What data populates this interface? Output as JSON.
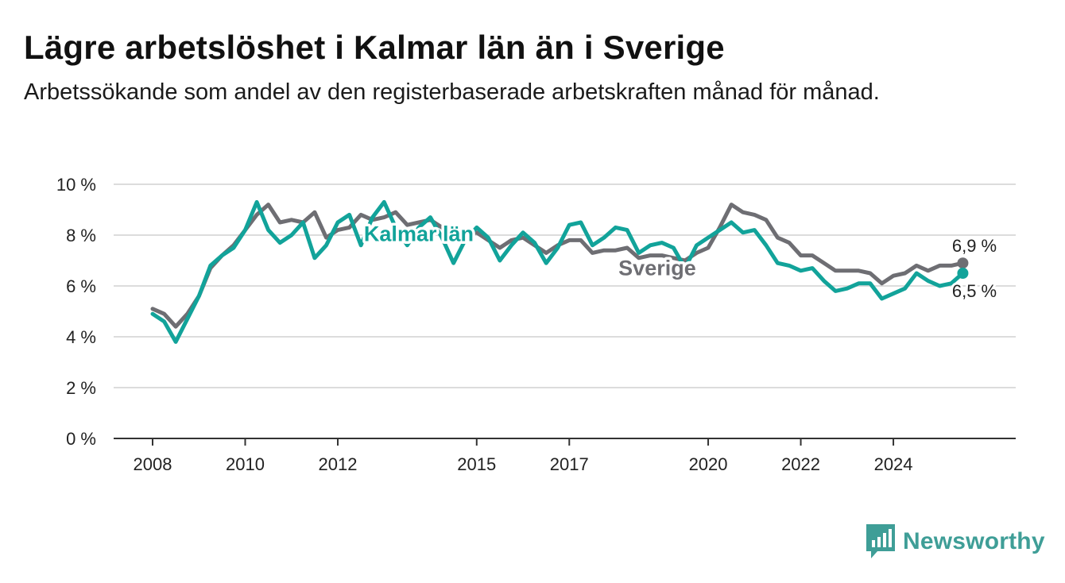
{
  "title": "Lägre arbetslöshet i Kalmar län än i Sverige",
  "subtitle": "Arbetssökande som andel av den registerbaserade arbetskraften månad för månad.",
  "brand": {
    "name": "Newsworthy",
    "icon": "newsworthy-logo-icon",
    "color": "#3f9e97"
  },
  "chart_data": {
    "type": "line",
    "title": "Lägre arbetslöshet i Kalmar län än i Sverige",
    "subtitle": "Arbetssökande som andel av den registerbaserade arbetskraften månad för månad.",
    "xlabel": "",
    "ylabel": "",
    "ylim": [
      0,
      10
    ],
    "yticks": [
      0,
      2,
      4,
      6,
      8,
      10
    ],
    "ytick_labels": [
      "0 %",
      "2 %",
      "4 %",
      "6 %",
      "8 %",
      "10 %"
    ],
    "xlim": [
      2008.0,
      2025.75
    ],
    "xticks": [
      2008,
      2010,
      2012,
      2015,
      2017,
      2020,
      2022,
      2024
    ],
    "xtick_labels": [
      "2008",
      "2010",
      "2012",
      "2015",
      "2017",
      "2020",
      "2022",
      "2024"
    ],
    "grid": true,
    "legend": "inline labels",
    "series": [
      {
        "name": "Sverige",
        "color": "#6e6e73",
        "end_label": "6,9 %",
        "x": [
          2008.0,
          2008.25,
          2008.5,
          2008.75,
          2009.0,
          2009.25,
          2009.5,
          2009.75,
          2010.0,
          2010.25,
          2010.5,
          2010.75,
          2011.0,
          2011.25,
          2011.5,
          2011.75,
          2012.0,
          2012.25,
          2012.5,
          2012.75,
          2013.0,
          2013.25,
          2013.5,
          2013.75,
          2014.0,
          2014.25,
          2014.5,
          2014.75,
          2015.0,
          2015.25,
          2015.5,
          2015.75,
          2016.0,
          2016.25,
          2016.5,
          2016.75,
          2017.0,
          2017.25,
          2017.5,
          2017.75,
          2018.0,
          2018.25,
          2018.5,
          2018.75,
          2019.0,
          2019.25,
          2019.5,
          2019.75,
          2020.0,
          2020.25,
          2020.5,
          2020.75,
          2021.0,
          2021.25,
          2021.5,
          2021.75,
          2022.0,
          2022.25,
          2022.5,
          2022.75,
          2023.0,
          2023.25,
          2023.5,
          2023.75,
          2024.0,
          2024.25,
          2024.5,
          2024.75,
          2025.0,
          2025.25,
          2025.5
        ],
        "values": [
          5.1,
          4.9,
          4.4,
          4.9,
          5.6,
          6.7,
          7.2,
          7.6,
          8.2,
          8.8,
          9.2,
          8.5,
          8.6,
          8.5,
          8.9,
          7.9,
          8.2,
          8.3,
          8.8,
          8.6,
          8.7,
          8.9,
          8.4,
          8.5,
          8.6,
          8.3,
          7.9,
          8.0,
          8.1,
          7.8,
          7.5,
          7.8,
          7.9,
          7.6,
          7.3,
          7.6,
          7.8,
          7.8,
          7.3,
          7.4,
          7.4,
          7.5,
          7.1,
          7.2,
          7.2,
          7.1,
          7.0,
          7.3,
          7.5,
          8.3,
          9.2,
          8.9,
          8.8,
          8.6,
          7.9,
          7.7,
          7.2,
          7.2,
          6.9,
          6.6,
          6.6,
          6.6,
          6.5,
          6.1,
          6.4,
          6.5,
          6.8,
          6.6,
          6.8,
          6.8,
          6.9
        ]
      },
      {
        "name": "Kalmar län",
        "color": "#12a39a",
        "end_label": "6,5 %",
        "x": [
          2008.0,
          2008.25,
          2008.5,
          2008.75,
          2009.0,
          2009.25,
          2009.5,
          2009.75,
          2010.0,
          2010.25,
          2010.5,
          2010.75,
          2011.0,
          2011.25,
          2011.5,
          2011.75,
          2012.0,
          2012.25,
          2012.5,
          2012.75,
          2013.0,
          2013.25,
          2013.5,
          2013.75,
          2014.0,
          2014.25,
          2014.5,
          2014.75,
          2015.0,
          2015.25,
          2015.5,
          2015.75,
          2016.0,
          2016.25,
          2016.5,
          2016.75,
          2017.0,
          2017.25,
          2017.5,
          2017.75,
          2018.0,
          2018.25,
          2018.5,
          2018.75,
          2019.0,
          2019.25,
          2019.5,
          2019.75,
          2020.0,
          2020.25,
          2020.5,
          2020.75,
          2021.0,
          2021.25,
          2021.5,
          2021.75,
          2022.0,
          2022.25,
          2022.5,
          2022.75,
          2023.0,
          2023.25,
          2023.5,
          2023.75,
          2024.0,
          2024.25,
          2024.5,
          2024.75,
          2025.0,
          2025.25,
          2025.5
        ],
        "values": [
          4.9,
          4.6,
          3.8,
          4.7,
          5.6,
          6.8,
          7.2,
          7.5,
          8.2,
          9.3,
          8.2,
          7.7,
          8.0,
          8.5,
          7.1,
          7.6,
          8.5,
          8.8,
          7.6,
          8.7,
          9.3,
          8.3,
          7.6,
          8.3,
          8.7,
          7.9,
          6.9,
          7.8,
          8.3,
          7.9,
          7.0,
          7.6,
          8.1,
          7.7,
          6.9,
          7.5,
          8.4,
          8.5,
          7.6,
          7.9,
          8.3,
          8.2,
          7.3,
          7.6,
          7.7,
          7.5,
          6.7,
          7.6,
          7.9,
          8.2,
          8.5,
          8.1,
          8.2,
          7.6,
          6.9,
          6.8,
          6.6,
          6.7,
          6.2,
          5.8,
          5.9,
          6.1,
          6.1,
          5.5,
          5.7,
          5.9,
          6.5,
          6.2,
          6.0,
          6.1,
          6.5
        ]
      }
    ]
  }
}
